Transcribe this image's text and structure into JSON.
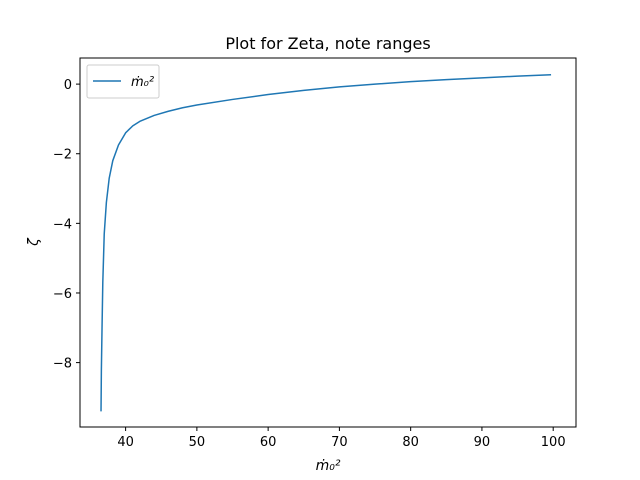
{
  "chart_data": {
    "type": "line",
    "title": "Plot for Zeta, note ranges",
    "xlabel": "ṁ₀²",
    "ylabel": "ζ",
    "xlim": [
      33.6,
      103.2
    ],
    "ylim": [
      -9.85,
      0.75
    ],
    "x_ticks": [
      40,
      50,
      60,
      70,
      80,
      90,
      100
    ],
    "y_ticks": [
      0,
      -2,
      -4,
      -6,
      -8
    ],
    "y_tick_labels": [
      "0",
      "−2",
      "−4",
      "−6",
      "−8"
    ],
    "grid": false,
    "legend_position": "upper-left",
    "series": [
      {
        "name": "ṁ₀²",
        "color": "#1f77b4",
        "x": [
          36.55,
          36.6,
          36.7,
          36.8,
          37.0,
          37.3,
          37.7,
          38.2,
          39.0,
          40.0,
          41.0,
          42.0,
          44.0,
          46.0,
          48.0,
          50.0,
          55.0,
          60.0,
          65.0,
          70.0,
          75.0,
          80.0,
          85.0,
          90.0,
          95.0,
          99.7
        ],
        "y": [
          -9.4,
          -8.2,
          -6.9,
          -5.7,
          -4.3,
          -3.4,
          -2.7,
          -2.2,
          -1.75,
          -1.4,
          -1.2,
          -1.07,
          -0.9,
          -0.78,
          -0.68,
          -0.6,
          -0.44,
          -0.3,
          -0.18,
          -0.08,
          0.0,
          0.07,
          0.13,
          0.18,
          0.23,
          0.27
        ]
      }
    ]
  }
}
